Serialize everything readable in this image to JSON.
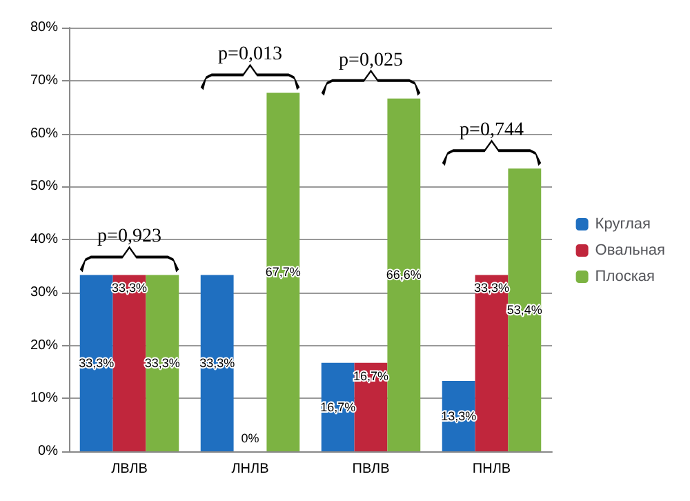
{
  "chart_data": {
    "type": "bar",
    "categories": [
      "ЛВЛВ",
      "ЛНЛВ",
      "ПВЛВ",
      "ПНЛВ"
    ],
    "series": [
      {
        "name": "Круглая",
        "color": "#1f6fc0",
        "values": [
          33.3,
          33.3,
          16.7,
          13.3
        ],
        "value_labels": [
          "33,3%",
          "33,3%",
          "16,7%",
          "13,3%"
        ]
      },
      {
        "name": "Овальная",
        "color": "#c0263c",
        "values": [
          33.3,
          0,
          16.7,
          33.3
        ],
        "value_labels": [
          "33,3%",
          "0%",
          "16,7%",
          "33,3%"
        ]
      },
      {
        "name": "Плоская",
        "color": "#7cb342",
        "values": [
          33.3,
          67.7,
          66.6,
          53.4
        ],
        "value_labels": [
          "33,3%",
          "67,7%",
          "66,6%",
          "53,4%"
        ]
      }
    ],
    "ylim": [
      0,
      80
    ],
    "yticks": [
      {
        "value": 0,
        "label": "0%"
      },
      {
        "value": 10,
        "label": "10%"
      },
      {
        "value": 20,
        "label": "20%"
      },
      {
        "value": 30,
        "label": "30%"
      },
      {
        "value": 40,
        "label": "40%"
      },
      {
        "value": 50,
        "label": "50%"
      },
      {
        "value": 60,
        "label": "60%"
      },
      {
        "value": 70,
        "label": "70%"
      },
      {
        "value": 80,
        "label": "80%"
      }
    ],
    "annotations": [
      "p=0,923",
      "p=0,013",
      "p=0,025",
      "p=0,744"
    ],
    "grid": "y",
    "legend": "right"
  }
}
